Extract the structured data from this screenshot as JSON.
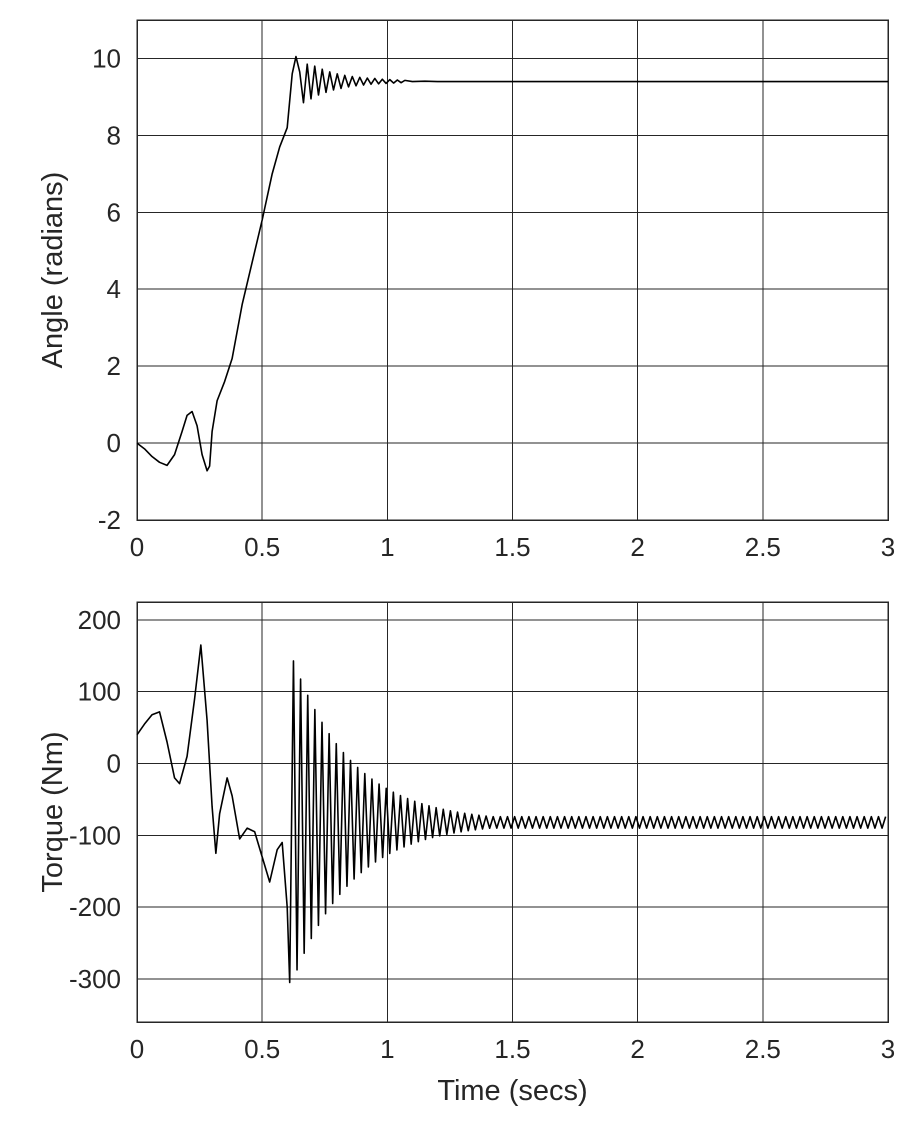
{
  "chart_data": [
    {
      "type": "line",
      "xlabel": "",
      "ylabel": "Angle (radians)",
      "xlim": [
        0,
        3
      ],
      "ylim": [
        -2,
        11
      ],
      "xticks": [
        0,
        0.5,
        1,
        1.5,
        2,
        2.5,
        3
      ],
      "xtick_labels": [
        "0",
        "0.5",
        "1",
        "1.5",
        "2",
        "2.5",
        "3"
      ],
      "yticks": [
        -2,
        0,
        2,
        4,
        6,
        8,
        10
      ],
      "ytick_labels": [
        "-2",
        "0",
        "2",
        "4",
        "6",
        "8",
        "10"
      ],
      "grid": true,
      "line_color": "#000000",
      "series": [
        {
          "x": [
            0,
            0.03,
            0.06,
            0.09,
            0.12,
            0.15,
            0.18,
            0.2,
            0.22,
            0.24,
            0.26,
            0.28,
            0.29,
            0.3,
            0.32,
            0.35,
            0.38,
            0.42,
            0.46,
            0.5,
            0.54,
            0.57,
            0.6,
            0.62,
            0.635,
            0.65,
            0.665,
            0.68,
            0.695,
            0.71,
            0.725,
            0.74,
            0.755,
            0.77,
            0.785,
            0.8,
            0.815,
            0.83,
            0.845,
            0.86,
            0.875,
            0.89,
            0.905,
            0.92,
            0.935,
            0.95,
            0.965,
            0.98,
            0.995,
            1.01,
            1.025,
            1.04,
            1.055,
            1.07,
            1.1,
            1.15,
            1.2,
            1.3,
            1.5,
            2.0,
            2.5,
            3.0
          ],
          "y": [
            0,
            -0.15,
            -0.35,
            -0.5,
            -0.58,
            -0.3,
            0.3,
            0.72,
            0.82,
            0.45,
            -0.3,
            -0.72,
            -0.6,
            0.3,
            1.1,
            1.6,
            2.2,
            3.6,
            4.7,
            5.8,
            7.0,
            7.7,
            8.2,
            9.6,
            10.05,
            9.65,
            8.85,
            9.85,
            8.95,
            9.8,
            9.05,
            9.72,
            9.12,
            9.65,
            9.18,
            9.6,
            9.22,
            9.56,
            9.26,
            9.53,
            9.29,
            9.51,
            9.31,
            9.49,
            9.33,
            9.48,
            9.34,
            9.46,
            9.35,
            9.45,
            9.36,
            9.44,
            9.37,
            9.43,
            9.4,
            9.41,
            9.4,
            9.4,
            9.4,
            9.4,
            9.4,
            9.4
          ]
        }
      ]
    },
    {
      "type": "line",
      "xlabel": "Time (secs)",
      "ylabel": "Torque (Nm)",
      "xlim": [
        0,
        3
      ],
      "ylim": [
        -360,
        225
      ],
      "xticks": [
        0,
        0.5,
        1,
        1.5,
        2,
        2.5,
        3
      ],
      "xtick_labels": [
        "0",
        "0.5",
        "1",
        "1.5",
        "2",
        "2.5",
        "3"
      ],
      "yticks": [
        -300,
        -200,
        -100,
        0,
        100,
        200
      ],
      "ytick_labels": [
        "-300",
        "-200",
        "-100",
        "0",
        "100",
        "200"
      ],
      "grid": true,
      "line_color": "#000000",
      "series": [
        {
          "x": [
            0,
            0.03,
            0.06,
            0.09,
            0.12,
            0.15,
            0.17,
            0.2,
            0.23,
            0.255,
            0.28,
            0.3,
            0.315,
            0.33,
            0.36,
            0.38,
            0.41,
            0.44,
            0.47,
            0.5,
            0.53,
            0.56,
            0.58,
            0.6,
            0.61
          ],
          "y": [
            40,
            55,
            68,
            72,
            30,
            -20,
            -28,
            10,
            90,
            165,
            60,
            -60,
            -125,
            -70,
            -20,
            -45,
            -105,
            -90,
            -95,
            -130,
            -165,
            -120,
            -110,
            -200,
            -305
          ],
          "burst": {
            "t_start": 0.625,
            "period": 0.0285,
            "mean": -82,
            "initial_top": 143,
            "initial_bottom": -300,
            "decay": 4.2,
            "t_end": 3.0,
            "residual_amplitude": 8
          }
        }
      ]
    }
  ]
}
